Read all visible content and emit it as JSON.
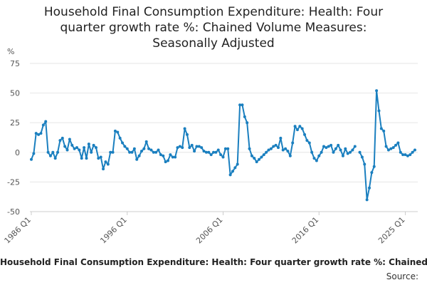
{
  "title_lines": [
    "Household Final Consumption Expenditure: Health: Four",
    "quarter growth rate %: Chained Volume Measures:",
    "Seasonally Adjusted"
  ],
  "legend_text": "Household Final Consumption Expenditure: Health: Four quarter growth rate %: Chained Volume Measures: Seasonally Adjusted",
  "source_label": "Source:",
  "colors": {
    "series": "#1a7fbf",
    "grid": "#e6e6e6",
    "axis_text": "#555555"
  },
  "chart_data": {
    "type": "line",
    "y_unit_label": "%",
    "ylim": [
      -50,
      75
    ],
    "y_ticks": [
      75,
      50,
      25,
      0,
      -25,
      -50
    ],
    "x_tick_labels": [
      "1986 Q1",
      "1996 Q1",
      "2006 Q1",
      "2016 Q1",
      "2025 Q1"
    ],
    "x_tick_index": [
      0,
      40,
      80,
      120,
      156
    ],
    "grid": true,
    "markers": true,
    "series": [
      {
        "start": "1986 Q1",
        "frequency": "quarterly",
        "values": [
          -6,
          -1,
          16,
          15,
          16,
          23,
          26,
          0,
          -3,
          0,
          -5,
          0,
          10,
          12,
          5,
          2,
          11,
          6,
          3,
          4,
          2,
          -5,
          4,
          -5,
          7,
          0,
          6,
          4,
          -5,
          -4,
          -14,
          -8,
          -10,
          0,
          0,
          18,
          17,
          12,
          8,
          5,
          3,
          0,
          0,
          3,
          -6,
          -3,
          1,
          3,
          9,
          3,
          2,
          0,
          0,
          2,
          -2,
          -3,
          -8,
          -7,
          -2,
          -4,
          -4,
          4,
          5,
          4,
          20,
          15,
          4,
          6,
          1,
          5,
          5,
          4,
          1,
          0,
          0,
          -2,
          0,
          0,
          2,
          -2,
          -4,
          3,
          3,
          -19,
          -16,
          -13,
          -10,
          40,
          40,
          30,
          25,
          3,
          -3,
          -5,
          -8,
          -6,
          -4,
          -2,
          0,
          2,
          3,
          5,
          6,
          4,
          12,
          2,
          3,
          1,
          -3,
          8,
          22,
          19,
          22,
          20,
          15,
          10,
          8,
          0,
          -5,
          -7,
          -3,
          0,
          5,
          4,
          5,
          6,
          0,
          3,
          6,
          2,
          -3,
          3,
          -1,
          0,
          2,
          5,
          null,
          0,
          -4,
          -10,
          -40,
          -30,
          -17,
          -12,
          52,
          35,
          20,
          18,
          5,
          2,
          3,
          4,
          6,
          8,
          0,
          -2,
          -2,
          -3,
          -2,
          0,
          2
        ]
      }
    ]
  }
}
